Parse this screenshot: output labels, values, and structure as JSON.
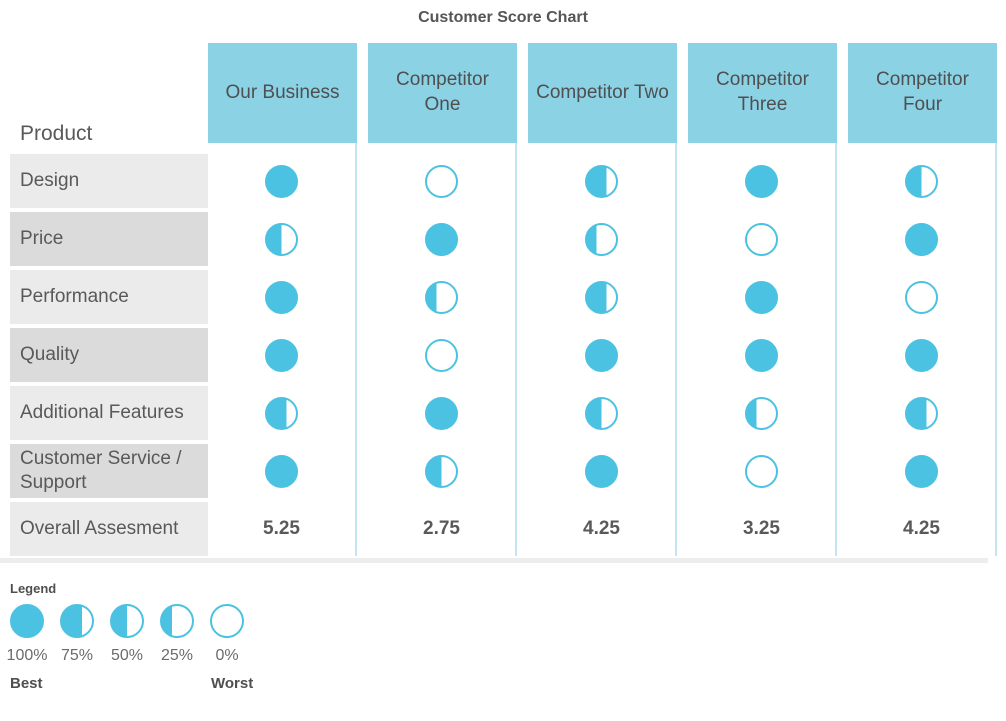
{
  "colors": {
    "circle_blue": "#4CC2E2",
    "header_blue": "#8CD2E5",
    "column_line_blue": "#C2E6F1",
    "row_stripe_light": "#EBEBEB",
    "row_stripe_dark": "#DBDBDB",
    "text_gray": "#595959"
  },
  "chart_data": {
    "type": "table",
    "subtype": "harvey-ball-comparison-matrix",
    "title": "Customer Score Chart",
    "row_header": "Product",
    "columns": [
      "Our Business",
      "Competitor One",
      "Competitor Two",
      "Competitor Three",
      "Competitor Four"
    ],
    "rows": [
      "Design",
      "Price",
      "Performance",
      "Quality",
      "Additional Features",
      "Customer Service / Support"
    ],
    "scores_pct": [
      [
        100,
        0,
        75,
        100,
        50
      ],
      [
        50,
        100,
        25,
        0,
        100
      ],
      [
        100,
        25,
        75,
        100,
        0
      ],
      [
        100,
        0,
        100,
        100,
        100
      ],
      [
        75,
        100,
        50,
        25,
        75
      ],
      [
        100,
        50,
        100,
        0,
        100
      ]
    ],
    "overall_label": "Overall Assesment",
    "overall_values": [
      "5.25",
      "2.75",
      "4.25",
      "3.25",
      "4.25"
    ],
    "legend": {
      "title": "Legend",
      "items": [
        {
          "pct": "100%",
          "fill": 100
        },
        {
          "pct": "75%",
          "fill": 75
        },
        {
          "pct": "50%",
          "fill": 50
        },
        {
          "pct": "25%",
          "fill": 25
        },
        {
          "pct": "0%",
          "fill": 0
        }
      ],
      "best": "Best",
      "worst": "Worst"
    }
  }
}
